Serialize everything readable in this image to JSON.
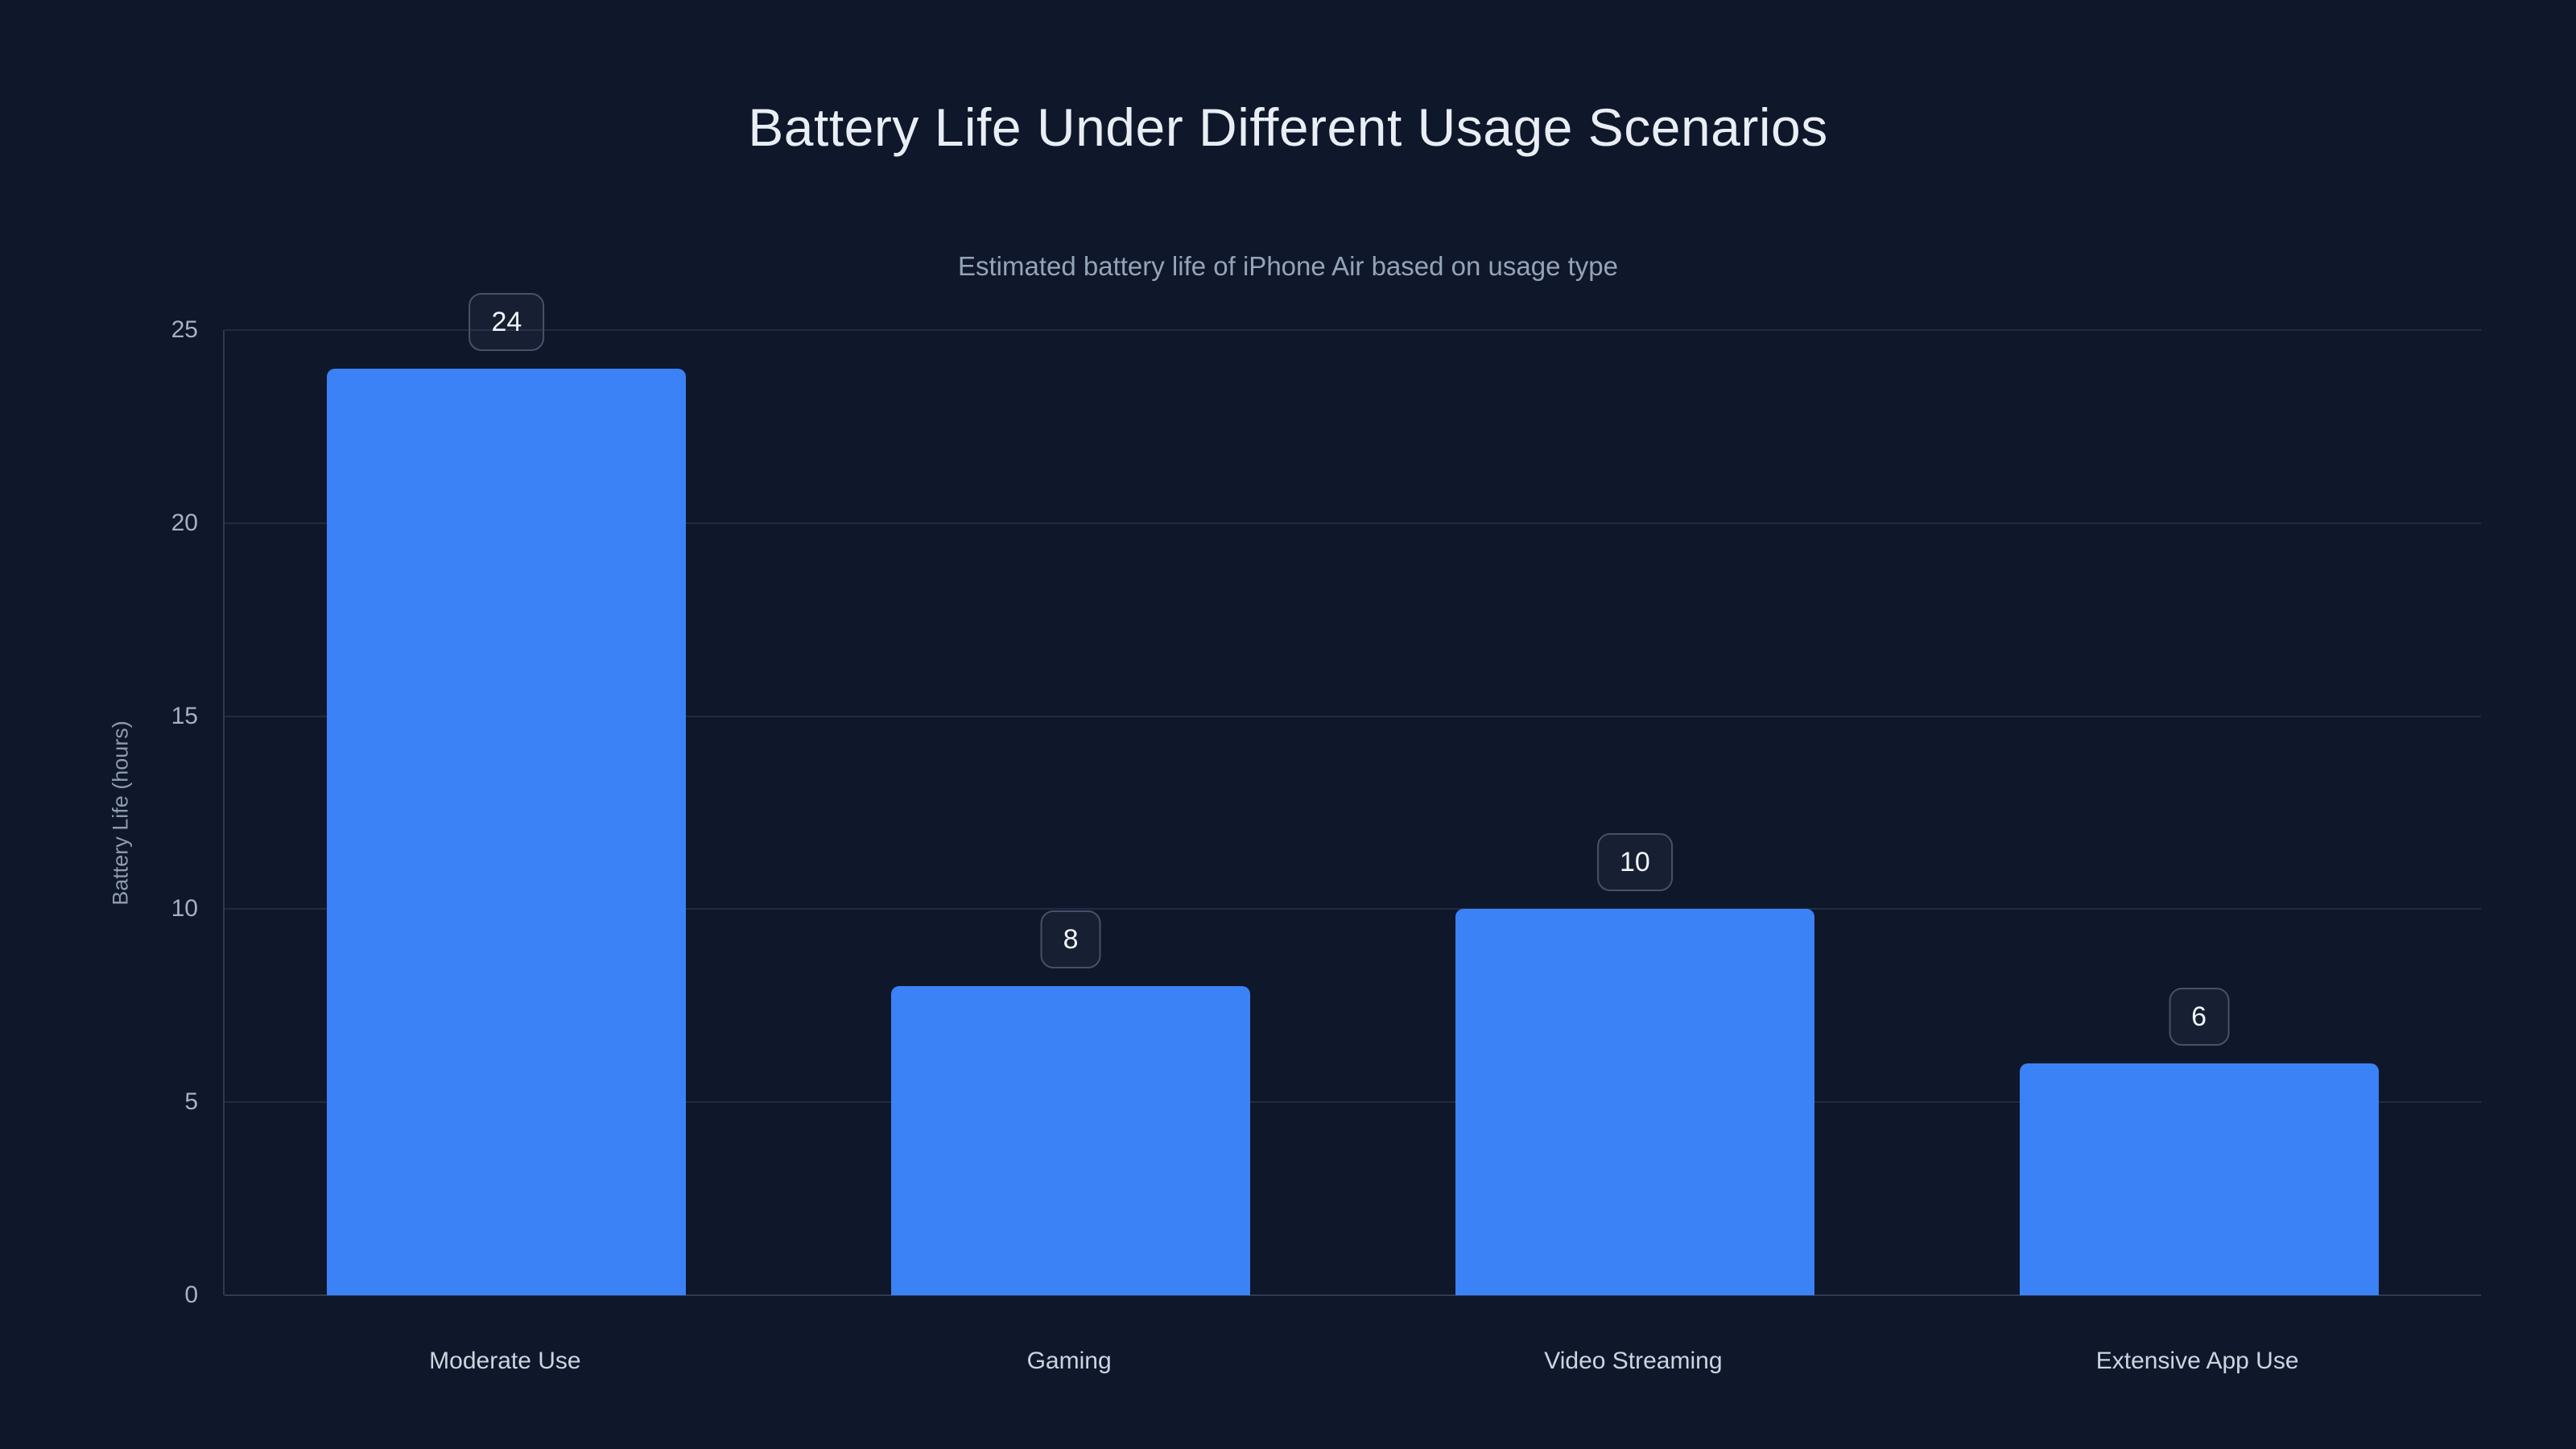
{
  "chart_data": {
    "type": "bar",
    "title": "Battery Life Under Different Usage Scenarios",
    "subtitle": "Estimated battery life of iPhone Air based on usage type",
    "ylabel": "Battery Life (hours)",
    "xlabel": "",
    "categories": [
      "Moderate Use",
      "Gaming",
      "Video Streaming",
      "Extensive App Use"
    ],
    "values": [
      24,
      8,
      10,
      6
    ],
    "value_labels": [
      "24",
      "8",
      "10",
      "6"
    ],
    "yticks": [
      0,
      5,
      10,
      15,
      20,
      25
    ],
    "ylim": [
      0,
      25
    ],
    "grid": "horizontal-only",
    "legend": "none",
    "colors": {
      "background": "#0f172a",
      "bar": "#3b82f6",
      "grid": "#212c42",
      "axis": "#2f3a52",
      "title": "#e9eef5",
      "subtitle": "#94a3b8",
      "tick": "#a5b1c2",
      "category_label": "#cbd5e1",
      "badge_border": "#45526a",
      "badge_text": "#f1f5f9"
    }
  }
}
